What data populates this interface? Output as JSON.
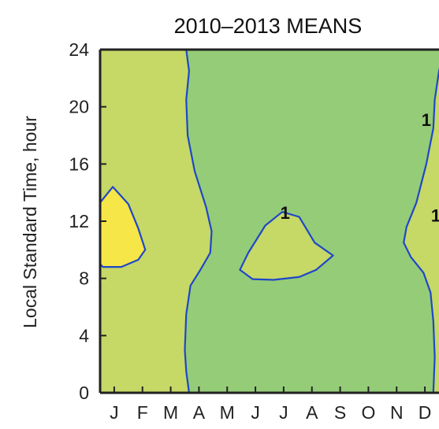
{
  "chart_data": {
    "type": "heatmap",
    "title": "2010–2013 MEANS",
    "xlabel": "",
    "ylabel": "Local Standard Time, hour",
    "x_tick_labels": [
      "J",
      "F",
      "M",
      "A",
      "M",
      "J",
      "J",
      "A",
      "S",
      "O",
      "N",
      "D"
    ],
    "y_ticks": [
      "0",
      "4",
      "8",
      "12",
      "16",
      "20",
      "24"
    ],
    "ylim": [
      0,
      24
    ],
    "xlim": [
      0,
      12
    ],
    "colors": {
      "low": "#95cc78",
      "mid": "#c6d866",
      "high": "#f6e647",
      "contour": "#1f47c8",
      "frame": "#222222"
    },
    "contour_labels": [
      {
        "text": "1",
        "x": 6.55,
        "y": 12.6
      },
      {
        "text": "1",
        "x": 11.55,
        "y": 19.1
      },
      {
        "text": "1",
        "x": 12.3,
        "y": 12.4
      }
    ],
    "regions": [
      {
        "level": "mid",
        "points": [
          [
            0,
            0
          ],
          [
            0,
            24
          ],
          [
            3.05,
            24
          ],
          [
            3.15,
            22.5
          ],
          [
            3.05,
            20.5
          ],
          [
            3.1,
            18
          ],
          [
            3.35,
            15.5
          ],
          [
            3.75,
            13
          ],
          [
            3.95,
            11.3
          ],
          [
            3.9,
            9.8
          ],
          [
            3.55,
            8.6
          ],
          [
            3.2,
            7.5
          ],
          [
            3.05,
            5.5
          ],
          [
            3.0,
            3
          ],
          [
            3.05,
            1.5
          ],
          [
            3.15,
            0
          ]
        ]
      },
      {
        "level": "mid",
        "points": [
          [
            12.5,
            0
          ],
          [
            12.5,
            24
          ],
          [
            12.2,
            24
          ],
          [
            12.0,
            22.5
          ],
          [
            11.85,
            20.5
          ],
          [
            11.8,
            18.5
          ],
          [
            11.55,
            16
          ],
          [
            11.2,
            13.3
          ],
          [
            10.85,
            11.6
          ],
          [
            10.75,
            10.5
          ],
          [
            11.0,
            9.5
          ],
          [
            11.45,
            8.4
          ],
          [
            11.7,
            7
          ],
          [
            11.8,
            5
          ],
          [
            11.85,
            2.5
          ],
          [
            11.8,
            0
          ]
        ]
      },
      {
        "level": "mid",
        "points": [
          [
            6.45,
            12.65
          ],
          [
            7.05,
            12.3
          ],
          [
            7.6,
            10.5
          ],
          [
            8.25,
            9.6
          ],
          [
            7.65,
            8.6
          ],
          [
            7.05,
            8.1
          ],
          [
            6.15,
            7.9
          ],
          [
            5.4,
            7.95
          ],
          [
            4.95,
            8.6
          ],
          [
            5.25,
            9.8
          ],
          [
            5.85,
            11.7
          ]
        ]
      },
      {
        "level": "high",
        "points": [
          [
            0,
            13.3
          ],
          [
            0.45,
            14.4
          ],
          [
            1.0,
            13.2
          ],
          [
            1.35,
            11.5
          ],
          [
            1.6,
            10
          ],
          [
            1.35,
            9.3
          ],
          [
            0.75,
            8.8
          ],
          [
            0.1,
            8.8
          ],
          [
            0,
            9.0
          ]
        ]
      },
      {
        "level": "high",
        "points": [
          [
            12.5,
            12.0
          ],
          [
            12.25,
            11.5
          ],
          [
            12.1,
            10.3
          ],
          [
            12.2,
            9.4
          ],
          [
            12.4,
            8.9
          ],
          [
            12.5,
            8.9
          ]
        ]
      }
    ]
  }
}
